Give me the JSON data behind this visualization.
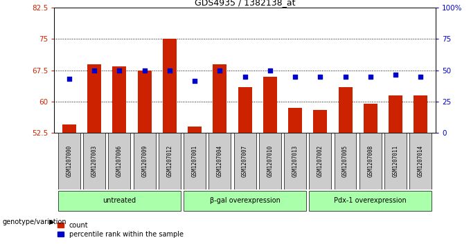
{
  "title": "GDS4935 / 1382138_at",
  "samples": [
    "GSM1207000",
    "GSM1207003",
    "GSM1207006",
    "GSM1207009",
    "GSM1207012",
    "GSM1207001",
    "GSM1207004",
    "GSM1207007",
    "GSM1207010",
    "GSM1207013",
    "GSM1207002",
    "GSM1207005",
    "GSM1207008",
    "GSM1207011",
    "GSM1207014"
  ],
  "bar_values": [
    54.5,
    69.0,
    68.5,
    67.5,
    75.0,
    54.0,
    69.0,
    63.5,
    66.0,
    58.5,
    58.0,
    63.5,
    59.5,
    61.5,
    61.5
  ],
  "dot_values": [
    65.5,
    67.5,
    67.5,
    67.5,
    67.5,
    65.0,
    67.5,
    66.0,
    67.5,
    66.0,
    66.0,
    66.0,
    66.0,
    66.5,
    66.0
  ],
  "bar_color": "#cc2200",
  "dot_color": "#0000cc",
  "ylim_left": [
    52.5,
    82.5
  ],
  "ylim_right": [
    0,
    100
  ],
  "yticks_left": [
    52.5,
    60.0,
    67.5,
    75.0,
    82.5
  ],
  "yticks_right": [
    0,
    25,
    50,
    75,
    100
  ],
  "ytick_labels_left": [
    "52.5",
    "60",
    "67.5",
    "75",
    "82.5"
  ],
  "ytick_labels_right": [
    "0",
    "25",
    "50",
    "75",
    "100%"
  ],
  "groups": [
    {
      "label": "untreated",
      "start": 0,
      "end": 5
    },
    {
      "label": "β-gal overexpression",
      "start": 5,
      "end": 10
    },
    {
      "label": "Pdx-1 overexpression",
      "start": 10,
      "end": 15
    }
  ],
  "group_color": "#aaffaa",
  "bar_width": 0.55,
  "background_color": "#ffffff",
  "xlabel_bar": "genotype/variation",
  "legend_items": [
    "count",
    "percentile rank within the sample"
  ],
  "sample_bg": "#cccccc"
}
